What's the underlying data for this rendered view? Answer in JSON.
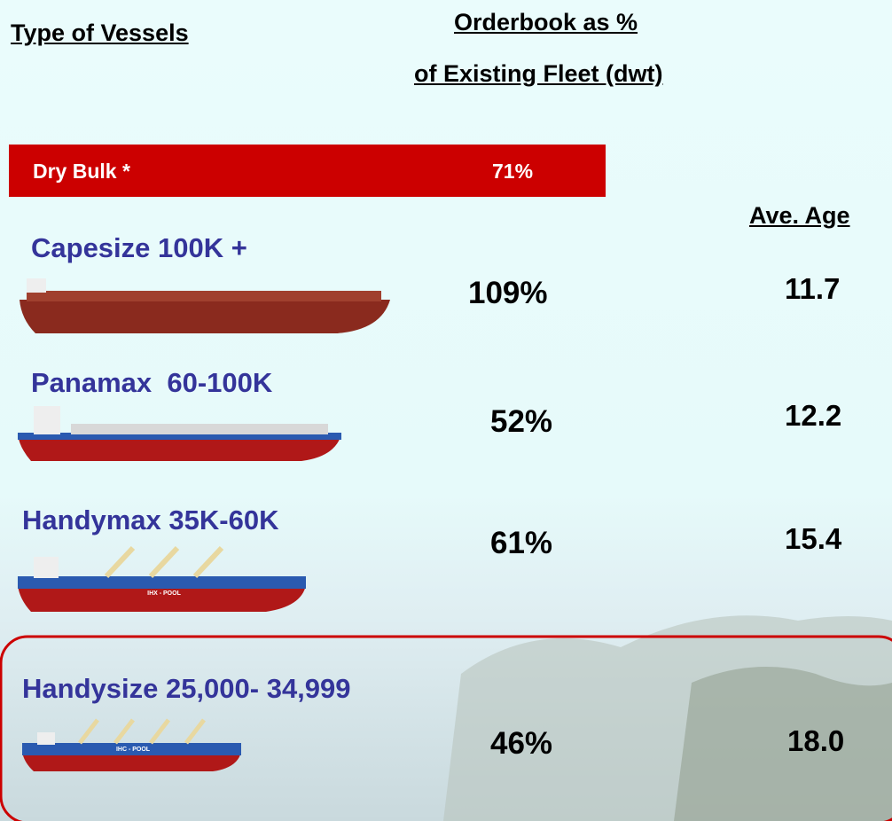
{
  "header": {
    "vessel_type": "Type of Vessels",
    "orderbook_line1": "Orderbook as %",
    "orderbook_line2": "of Existing Fleet (dwt)",
    "age": "Ave. Age"
  },
  "summary": {
    "label": "Dry Bulk *",
    "orderbook": "71%"
  },
  "rows": [
    {
      "name": "Capesize 100K +",
      "orderbook": "109%",
      "age": "11.7"
    },
    {
      "name": "Panamax  60-100K",
      "orderbook": "52%",
      "age": "12.2"
    },
    {
      "name": "Handymax 35K-60K",
      "orderbook": "61%",
      "age": "15.4",
      "hull_label": "IHX - POOL"
    },
    {
      "name": "Handysize 25,000- 34,999",
      "orderbook": "46%",
      "age": "18.0",
      "hull_label": "IHC - POOL"
    }
  ]
}
